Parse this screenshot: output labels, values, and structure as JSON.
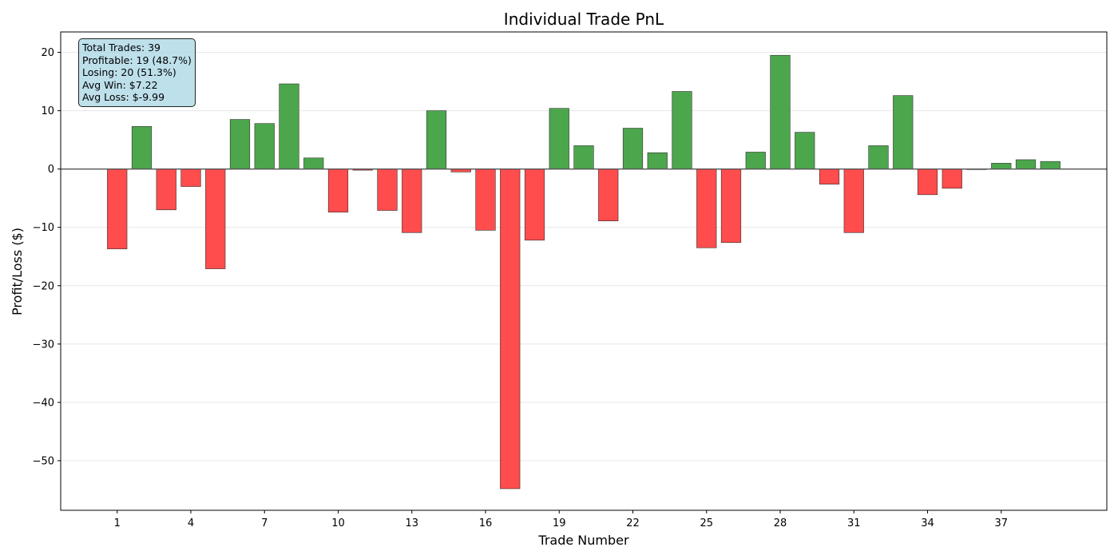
{
  "chart_data": {
    "type": "bar",
    "title": "Individual Trade PnL",
    "xlabel": "Trade Number",
    "ylabel": "Profit/Loss ($)",
    "ylim": [
      -58.5,
      23.5
    ],
    "xlim": [
      -1.3,
      41.3
    ],
    "yticks": [
      20,
      10,
      0,
      -10,
      -20,
      -30,
      -40,
      -50
    ],
    "ytick_labels": [
      "20",
      "10",
      "0",
      "−10",
      "−20",
      "−30",
      "−40",
      "−50"
    ],
    "xticks": [
      1,
      4,
      7,
      10,
      13,
      16,
      19,
      22,
      25,
      28,
      31,
      34,
      37
    ],
    "xtick_labels": [
      "1",
      "4",
      "7",
      "10",
      "13",
      "16",
      "19",
      "22",
      "25",
      "28",
      "31",
      "34",
      "37"
    ],
    "grid": "horizontal",
    "x": [
      1,
      2,
      3,
      4,
      5,
      6,
      7,
      8,
      9,
      10,
      11,
      12,
      13,
      14,
      15,
      16,
      17,
      18,
      19,
      20,
      21,
      22,
      23,
      24,
      25,
      26,
      27,
      28,
      29,
      30,
      31,
      32,
      33,
      34,
      35,
      36,
      37,
      38,
      39
    ],
    "values": [
      -13.7,
      7.3,
      -7.0,
      -3.0,
      -17.1,
      8.5,
      7.8,
      14.6,
      1.9,
      -7.4,
      -0.2,
      -7.1,
      -10.9,
      10.0,
      -0.5,
      -10.5,
      -54.8,
      -12.2,
      10.4,
      4.0,
      -8.9,
      7.0,
      2.8,
      13.3,
      -13.5,
      -12.6,
      2.9,
      19.5,
      6.3,
      -2.6,
      -10.9,
      4.0,
      12.6,
      -4.4,
      -3.3,
      -0.1,
      1.0,
      1.6,
      1.3
    ],
    "colors": {
      "profit": "#4ca64c",
      "loss": "#ff4c4c",
      "edge": "#333333",
      "zero_line": "#555555",
      "grid": "#e6e6e6",
      "stats_box": "#add8e6"
    }
  },
  "stats": {
    "line1": "Total Trades: 39",
    "line2": "Profitable: 19 (48.7%)",
    "line3": "Losing: 20 (51.3%)",
    "line4": "Avg Win: $7.22",
    "line5": "Avg Loss: $-9.99"
  }
}
